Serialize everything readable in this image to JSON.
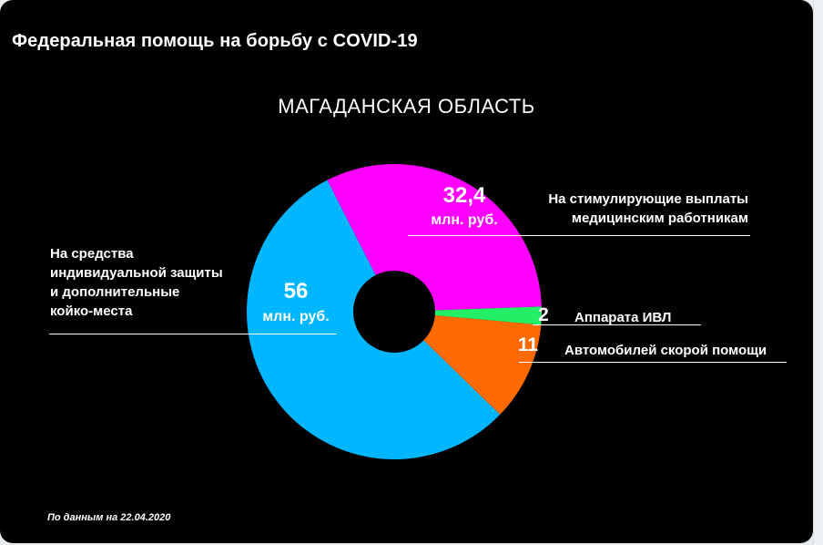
{
  "header": {
    "title": "Федеральная помощь на борьбу с COVID-19"
  },
  "chart_data": {
    "type": "pie",
    "subtype": "donut",
    "title": "МАГАДАНСКАЯ ОБЛАСТЬ",
    "unit": "млн. руб.",
    "slices": [
      {
        "label": "На стимулирующие выплаты медицинским работникам",
        "value": 32.4,
        "display": "32,4",
        "unit_label": "млн. руб.",
        "color": "#ff00ff"
      },
      {
        "label": "Аппарата ИВЛ",
        "value": 2,
        "display": "2",
        "color": "#22ee66"
      },
      {
        "label": "Автомобилей скорой помощи",
        "value": 11,
        "display": "11",
        "color": "#ff6a00"
      },
      {
        "label": "На средства индивидуальной защиты и дополнительные койко-места",
        "value": 56,
        "display": "56",
        "unit_label": "млн. руб.",
        "color": "#00b7ff"
      }
    ]
  },
  "labels": {
    "stim_line1": "На стимулирующие выплаты",
    "stim_line2": "медицинским работникам",
    "ivl": "Аппарата ИВЛ",
    "ambulance": "Автомобилей скорой помощи",
    "sredstva_1": "На средства",
    "sredstva_2": "индивидуальной защиты",
    "sredstva_3": "и дополнительные",
    "sredstva_4": "койко-места"
  },
  "footnote": "По данным на 22.04.2020"
}
